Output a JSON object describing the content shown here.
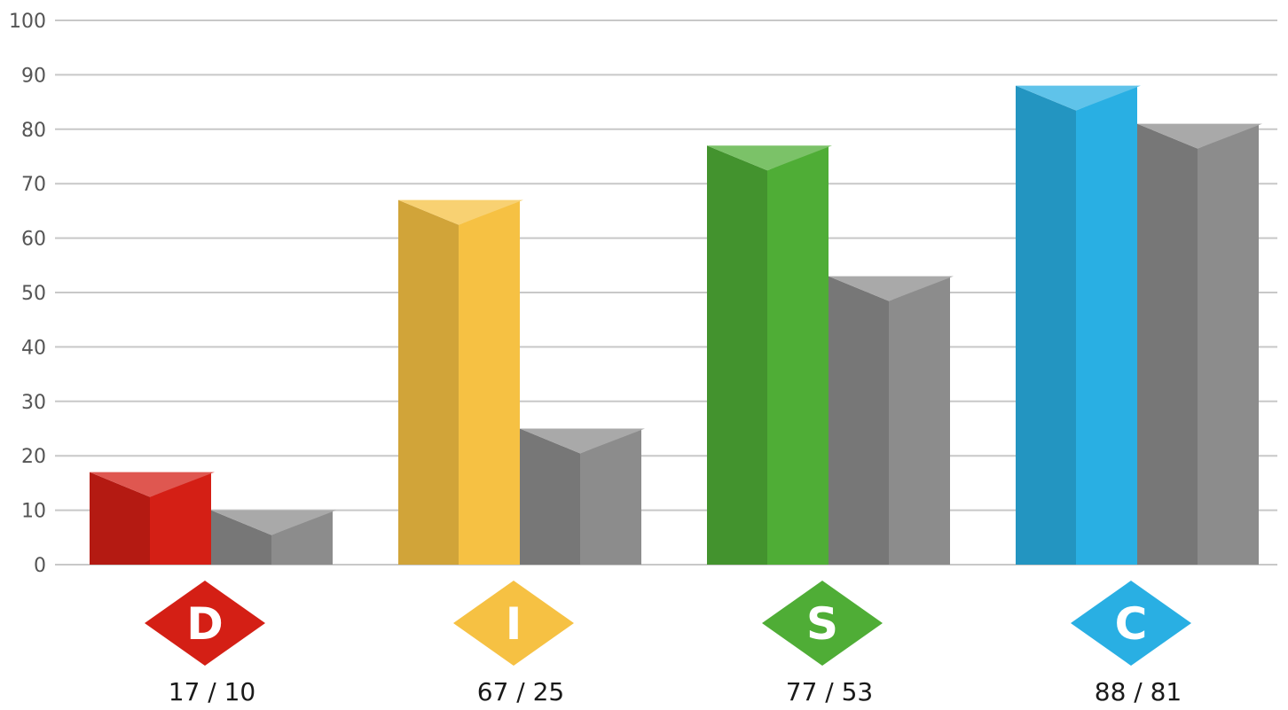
{
  "chart_data": {
    "type": "bar",
    "title": "",
    "xlabel": "",
    "ylabel": "",
    "ylim": [
      0,
      100
    ],
    "yticks": [
      0,
      10,
      20,
      30,
      40,
      50,
      60,
      70,
      80,
      90,
      100
    ],
    "grid": true,
    "categories": [
      "D",
      "I",
      "S",
      "C"
    ],
    "category_labels": [
      "17 / 10",
      "67 / 25",
      "77 / 53",
      "88 / 81"
    ],
    "category_colors": [
      "#d41f15",
      "#f6c143",
      "#4fad36",
      "#29afe3"
    ],
    "secondary_color": "#8c8c8c",
    "series": [
      {
        "values": [
          17,
          67,
          77,
          88
        ]
      },
      {
        "values": [
          10,
          25,
          53,
          81
        ]
      }
    ]
  }
}
